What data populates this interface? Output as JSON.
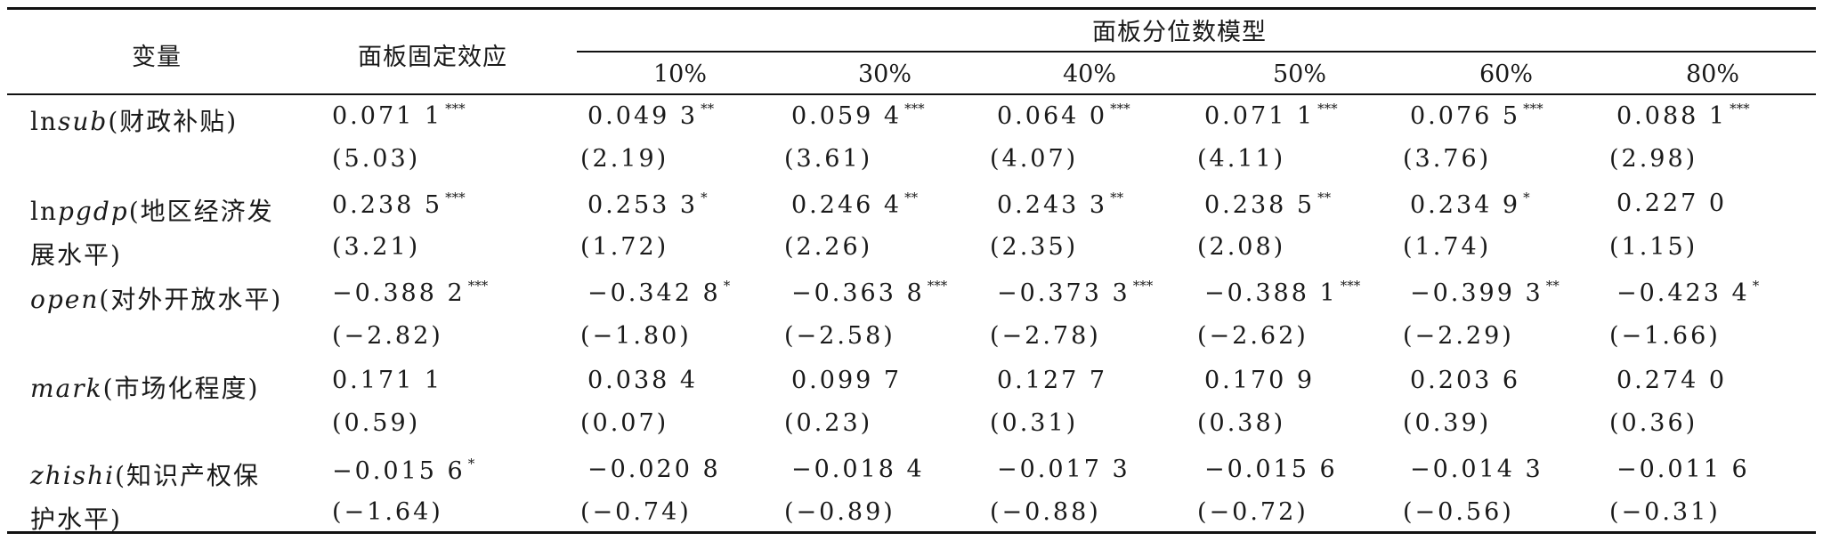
{
  "header": {
    "variable": "变量",
    "fixed_effect": "面板固定效应",
    "quantile_model": "面板分位数模型",
    "quantiles": [
      "10%",
      "30%",
      "40%",
      "50%",
      "60%",
      "80%"
    ]
  },
  "rows": [
    {
      "name_prefix": "ln",
      "name_italic": "sub",
      "name_suffix": "(财政补贴)",
      "name_line2": "",
      "coefs": [
        {
          "v": "0.071 1",
          "s": "***"
        },
        {
          "v": "0.049 3",
          "s": "**"
        },
        {
          "v": "0.059 4",
          "s": "***"
        },
        {
          "v": "0.064 0",
          "s": "***"
        },
        {
          "v": "0.071 1",
          "s": "***"
        },
        {
          "v": "0.076 5",
          "s": "***"
        },
        {
          "v": "0.088 1",
          "s": "***"
        }
      ],
      "tstats": [
        "(5.03)",
        "(2.19)",
        "(3.61)",
        "(4.07)",
        "(4.11)",
        "(3.76)",
        "(2.98)"
      ]
    },
    {
      "name_prefix": "ln",
      "name_italic": "pgdp",
      "name_suffix": "(地区经济发",
      "name_line2": "展水平)",
      "coefs": [
        {
          "v": "0.238 5",
          "s": "***"
        },
        {
          "v": "0.253 3",
          "s": "*"
        },
        {
          "v": "0.246 4",
          "s": "**"
        },
        {
          "v": "0.243 3",
          "s": "**"
        },
        {
          "v": "0.238 5",
          "s": "**"
        },
        {
          "v": "0.234 9",
          "s": "*"
        },
        {
          "v": "0.227 0",
          "s": ""
        }
      ],
      "tstats": [
        "(3.21)",
        "(1.72)",
        "(2.26)",
        "(2.35)",
        "(2.08)",
        "(1.74)",
        "(1.15)"
      ]
    },
    {
      "name_prefix": "",
      "name_italic": "open",
      "name_suffix": "(对外开放水平)",
      "name_line2": "",
      "coefs": [
        {
          "v": "−0.388 2",
          "s": "***"
        },
        {
          "v": "−0.342 8",
          "s": "*"
        },
        {
          "v": "−0.363 8",
          "s": "***"
        },
        {
          "v": "−0.373 3",
          "s": "***"
        },
        {
          "v": "−0.388 1",
          "s": "***"
        },
        {
          "v": "−0.399 3",
          "s": "**"
        },
        {
          "v": "−0.423 4",
          "s": "*"
        }
      ],
      "tstats": [
        "(−2.82)",
        "(−1.80)",
        "(−2.58)",
        "(−2.78)",
        "(−2.62)",
        "(−2.29)",
        "(−1.66)"
      ]
    },
    {
      "name_prefix": "",
      "name_italic": "mark",
      "name_suffix": "(市场化程度)",
      "name_line2": "",
      "coefs": [
        {
          "v": "0.171 1",
          "s": ""
        },
        {
          "v": "0.038 4",
          "s": ""
        },
        {
          "v": "0.099 7",
          "s": ""
        },
        {
          "v": "0.127 7",
          "s": ""
        },
        {
          "v": "0.170 9",
          "s": ""
        },
        {
          "v": "0.203 6",
          "s": ""
        },
        {
          "v": "0.274 0",
          "s": ""
        }
      ],
      "tstats": [
        "(0.59)",
        "(0.07)",
        "(0.23)",
        "(0.31)",
        "(0.38)",
        "(0.39)",
        "(0.36)"
      ]
    },
    {
      "name_prefix": "",
      "name_italic": "zhishi",
      "name_suffix": "(知识产权保",
      "name_line2": "护水平)",
      "coefs": [
        {
          "v": "−0.015 6",
          "s": "*"
        },
        {
          "v": "−0.020 8",
          "s": ""
        },
        {
          "v": "−0.018 4",
          "s": ""
        },
        {
          "v": "−0.017 3",
          "s": ""
        },
        {
          "v": "−0.015 6",
          "s": ""
        },
        {
          "v": "−0.014 3",
          "s": ""
        },
        {
          "v": "−0.011 6",
          "s": ""
        }
      ],
      "tstats": [
        "(−1.64)",
        "(−0.74)",
        "(−0.89)",
        "(−0.88)",
        "(−0.72)",
        "(−0.56)",
        "(−0.31)"
      ]
    }
  ]
}
